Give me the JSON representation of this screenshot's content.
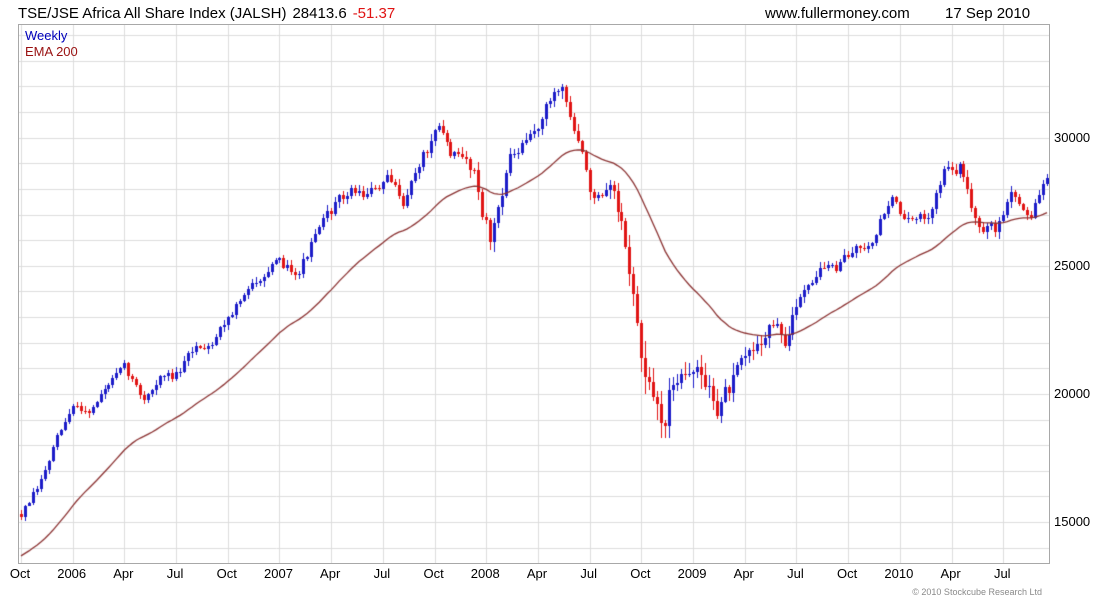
{
  "header": {
    "title": "TSE/JSE Africa All Share Index (JALSH)",
    "last_value": "28413.6",
    "change": "-51.37",
    "website": "www.fullermoney.com",
    "date": "17 Sep 2010"
  },
  "legend": {
    "weekly": "Weekly",
    "ema": "EMA 200"
  },
  "footer": {
    "copyright": "© 2010 Stockcube Research Ltd"
  },
  "colors": {
    "up": "#1c1cc8",
    "down": "#e01414",
    "ema": "#8b3232",
    "grid": "#dcdcdc",
    "border": "#a8a8a8",
    "change": "#e01414",
    "legend_weekly": "#0000bb",
    "legend_ema": "#991111",
    "background": "#ffffff"
  },
  "chart_data": {
    "type": "candlestick",
    "title": "TSE/JSE Africa All Share Index (JALSH)",
    "timeframe": "Weekly",
    "overlay": "EMA 200",
    "last_close": 28413.6,
    "change": -51.37,
    "ylim": [
      13400,
      34400
    ],
    "y_ticks": [
      15000,
      20000,
      25000,
      30000
    ],
    "y_grid_step": 1000,
    "x_tick_labels": [
      "Oct",
      "2006",
      "Apr",
      "Jul",
      "Oct",
      "2007",
      "Apr",
      "Jul",
      "Oct",
      "2008",
      "Apr",
      "Jul",
      "Oct",
      "2009",
      "Apr",
      "Jul",
      "Oct",
      "2010",
      "Apr",
      "Jul"
    ],
    "weeks_per_tick": 13,
    "total_weeks": 259,
    "monthly_anchor_closes": [
      15300,
      16300,
      18100,
      19500,
      19400,
      20350,
      20950,
      19800,
      20600,
      20700,
      21800,
      22100,
      23200,
      23900,
      24900,
      25000,
      24900,
      26200,
      27300,
      27900,
      27800,
      28300,
      27600,
      29200,
      30200,
      29200,
      28900,
      25900,
      29100,
      29600,
      30800,
      32200,
      29800,
      27400,
      27600,
      24900,
      19800,
      19000,
      21500,
      20700,
      19600,
      20400,
      21500,
      22800,
      22000,
      24200,
      25000,
      24900,
      25700,
      26200,
      27700,
      26700,
      26800,
      28700,
      28800,
      26900,
      26300,
      27900,
      26900,
      28413.6
    ],
    "volatility_anchors": [
      [
        0,
        420
      ],
      [
        12,
        480
      ],
      [
        24,
        620
      ],
      [
        26,
        700
      ],
      [
        27,
        950
      ],
      [
        28,
        650
      ],
      [
        33,
        800
      ],
      [
        35,
        1100
      ],
      [
        36,
        1600
      ],
      [
        38,
        1400
      ],
      [
        41,
        1100
      ],
      [
        44,
        800
      ],
      [
        46,
        520
      ],
      [
        53,
        520
      ],
      [
        55,
        780
      ],
      [
        57,
        550
      ],
      [
        59,
        480
      ]
    ],
    "ema": {
      "period_label": "200",
      "alpha": 0.049,
      "start": 13600
    },
    "seed": 7
  }
}
